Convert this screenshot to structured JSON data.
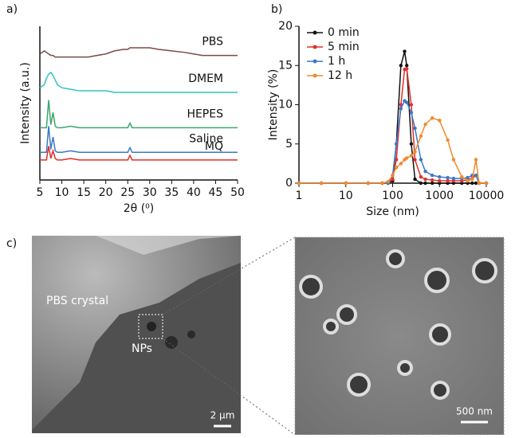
{
  "chart_data": [
    {
      "type": "line",
      "panel_label": "a)",
      "xlabel": "2θ (⁰)",
      "ylabel": "Intensity (a.u.)",
      "x": [
        5,
        6,
        6.5,
        7,
        7.5,
        8,
        8.5,
        9,
        10,
        12,
        14,
        16,
        18,
        20,
        22,
        24,
        25,
        25.5,
        26,
        28,
        30,
        32,
        35,
        38,
        40,
        42,
        45,
        48,
        50
      ],
      "xlim": [
        5,
        50
      ],
      "xticks": [
        5,
        10,
        15,
        20,
        25,
        30,
        35,
        40,
        45,
        50
      ],
      "ylim": [
        0,
        100
      ],
      "series": [
        {
          "name": "PBS",
          "color": "#7b4a44",
          "values": [
            82,
            84,
            83,
            82,
            81,
            81,
            80,
            80,
            80,
            80,
            80,
            80,
            81,
            82,
            84,
            85,
            85,
            86,
            86,
            86,
            86,
            85,
            84,
            83,
            82,
            81,
            81,
            81,
            81
          ]
        },
        {
          "name": "DMEM",
          "color": "#2ec4c4",
          "values": [
            60,
            62,
            66,
            69,
            70,
            68,
            65,
            62,
            60,
            59,
            58,
            58,
            58,
            58,
            57,
            57,
            57,
            57,
            57,
            57,
            57,
            57,
            57,
            57,
            57,
            57,
            57,
            57,
            57
          ]
        },
        {
          "name": "HEPES",
          "color": "#3aa86b",
          "values": [
            34,
            34,
            34,
            52,
            36,
            44,
            35,
            34,
            34,
            35,
            34,
            34,
            34,
            34,
            34,
            34,
            34,
            37,
            34,
            34,
            34,
            34,
            34,
            34,
            34,
            34,
            34,
            34,
            34
          ]
        },
        {
          "name": "Saline",
          "color": "#3a78c9",
          "values": [
            18,
            18,
            18,
            35,
            20,
            28,
            19,
            18,
            18,
            19,
            18,
            18,
            18,
            18,
            18,
            18,
            18,
            21,
            18,
            18,
            18,
            18,
            18,
            18,
            18,
            18,
            18,
            18,
            18
          ]
        },
        {
          "name": "MQ",
          "color": "#e0302a",
          "values": [
            13,
            13,
            13,
            22,
            14,
            19,
            14,
            13,
            13,
            14,
            13,
            13,
            13,
            13,
            13,
            13,
            13,
            16,
            13,
            13,
            13,
            13,
            13,
            13,
            13,
            13,
            13,
            13,
            13
          ]
        }
      ]
    },
    {
      "type": "line",
      "panel_label": "b)",
      "xlabel": "Size (nm)",
      "ylabel": "Intensity (%)",
      "log_x": true,
      "markers": true,
      "legend": "upper left",
      "x": [
        1,
        3,
        10,
        30,
        60,
        80,
        100,
        120,
        150,
        180,
        200,
        250,
        300,
        400,
        500,
        700,
        1000,
        1500,
        2000,
        3000,
        4000,
        5000,
        6000,
        7000,
        10000
      ],
      "xlim": [
        1,
        10000
      ],
      "xticks": [
        1,
        10,
        100,
        1000,
        10000
      ],
      "ylim": [
        0,
        20
      ],
      "yticks": [
        0,
        5,
        10,
        15,
        20
      ],
      "series": [
        {
          "name": "0 min",
          "color": "#111111",
          "values": [
            0,
            0,
            0,
            0,
            0,
            0,
            0.3,
            5,
            15,
            16.8,
            15,
            5,
            0.5,
            0,
            0,
            0,
            0,
            0,
            0,
            0,
            0,
            0,
            0,
            0,
            0
          ]
        },
        {
          "name": "5 min",
          "color": "#e0302a",
          "values": [
            0,
            0,
            0,
            0,
            0,
            0,
            0.5,
            3,
            10,
            14.5,
            14.6,
            10,
            3,
            0.8,
            0.5,
            0.4,
            0.3,
            0.3,
            0.3,
            0.3,
            0.4,
            0.6,
            1,
            0,
            0
          ]
        },
        {
          "name": "1 h",
          "color": "#3a78c9",
          "values": [
            0,
            0,
            0,
            0,
            0,
            0,
            1,
            5,
            9.5,
            10.5,
            10.3,
            9,
            7,
            3,
            1.5,
            1,
            0.8,
            0.7,
            0.6,
            0.6,
            0.7,
            1,
            1,
            0,
            0
          ]
        },
        {
          "name": "12 h",
          "color": "#f08a2c",
          "values": [
            0,
            0,
            0,
            0,
            0,
            0.2,
            1,
            2,
            2.5,
            3,
            3.2,
            3.5,
            4,
            6,
            7.5,
            8.3,
            8,
            5.5,
            3,
            0.8,
            0.3,
            0.5,
            3,
            0,
            0
          ]
        }
      ]
    }
  ],
  "panel_c": {
    "panel_label": "c)",
    "left_image": {
      "annotations": [
        "PBS crystal",
        "NPs"
      ],
      "scale_bar": "2 μm"
    },
    "right_image": {
      "scale_bar": "500 nm"
    }
  }
}
